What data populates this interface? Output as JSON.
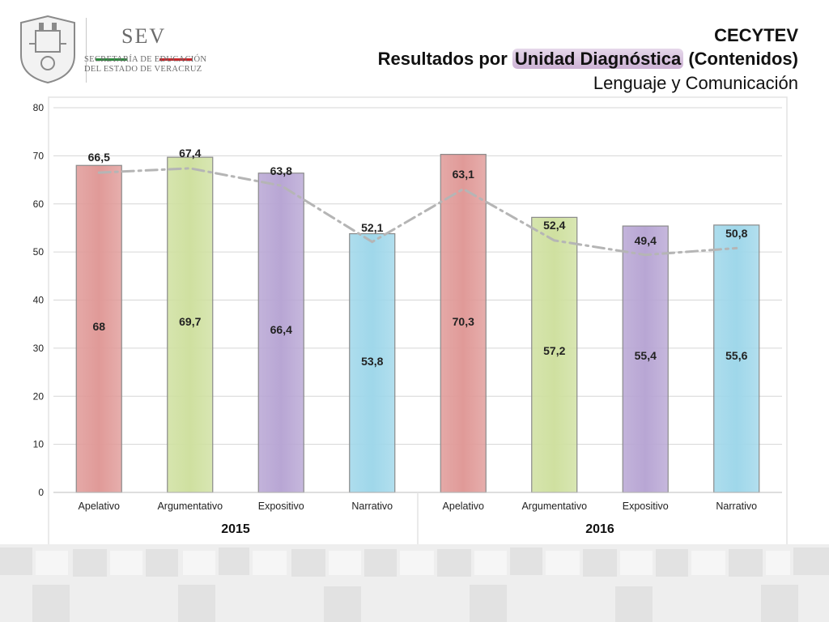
{
  "logo": {
    "word": "SEV",
    "line1": "SECRETARÍA DE EDUCACIÓN",
    "line2": "DEL ESTADO DE VERACRUZ"
  },
  "header": {
    "org": "CECYTEV",
    "subtitle_prefix": "Resultados por ",
    "subtitle_highlight": "Unidad Diagnóstica",
    "subtitle_suffix": " (Contenidos)",
    "area": "Lenguaje y Comunicación"
  },
  "chart_data": {
    "type": "bar",
    "categories": [
      "Apelativo",
      "Argumentativo",
      "Expositivo",
      "Narrativo",
      "Apelativo",
      "Argumentativo",
      "Expositivo",
      "Narrativo"
    ],
    "groups": [
      {
        "label": "2015",
        "from": 0,
        "to": 3
      },
      {
        "label": "2016",
        "from": 4,
        "to": 7
      }
    ],
    "series": [
      {
        "kind": "bar",
        "values": [
          68,
          69.7,
          66.4,
          53.8,
          70.3,
          57.2,
          55.4,
          55.6
        ],
        "labels": [
          "68",
          "69,7",
          "66,4",
          "53,8",
          "70,3",
          "57,2",
          "55,4",
          "55,6"
        ]
      },
      {
        "kind": "line",
        "values": [
          66.5,
          67.4,
          63.8,
          52.1,
          63.1,
          52.4,
          49.4,
          50.8
        ],
        "labels": [
          "66,5",
          "67,4",
          "63,8",
          "52,1",
          "63,1",
          "52,4",
          "49,4",
          "50,8"
        ],
        "color": "#b5b5b5"
      }
    ],
    "bar_colors": [
      "#e09a98",
      "#cfe0a0",
      "#b8a6d4",
      "#9fd7ea",
      "#e09a98",
      "#cfe0a0",
      "#b8a6d4",
      "#9fd7ea"
    ],
    "ylim": [
      0,
      80
    ],
    "yticks": [
      0,
      10,
      20,
      30,
      40,
      50,
      60,
      70,
      80
    ],
    "grid": true,
    "xlabel": "",
    "ylabel": "",
    "title": ""
  }
}
